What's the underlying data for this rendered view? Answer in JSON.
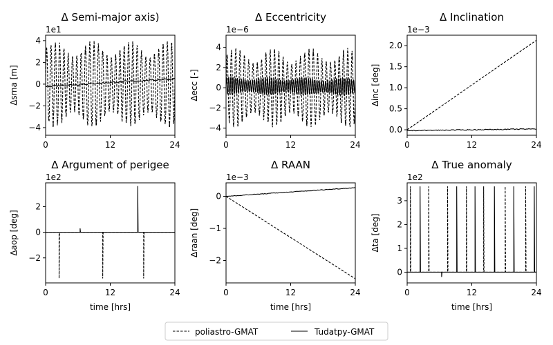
{
  "legend": {
    "items": [
      {
        "label": "poliastro-GMAT",
        "style": "dashed"
      },
      {
        "label": "Tudatpy-GMAT",
        "style": "solid"
      }
    ]
  },
  "chart_data": [
    {
      "type": "line",
      "title": "Δ Semi-major axis)",
      "ylabel": "Δsma [m]",
      "xlabel": "",
      "multiplier": "1e1",
      "xlim": [
        0,
        24
      ],
      "ylim": [
        -4.7,
        4.5
      ],
      "xticks": [
        0,
        12,
        24
      ],
      "yticks": [
        -4,
        -2,
        0,
        2,
        4
      ],
      "xtick_labels": [
        "0",
        "12",
        "24"
      ],
      "ytick_labels": [
        "−4",
        "−2",
        "0",
        "2",
        "4"
      ],
      "series": [
        {
          "style": "dashed",
          "pattern": "oscillation",
          "amplitude": 4.1,
          "period_hrs": 0.8,
          "trend": [
            0,
            0
          ]
        },
        {
          "style": "solid",
          "pattern": "line",
          "trend": [
            -0.2,
            0.5
          ],
          "noise": 0.08
        }
      ]
    },
    {
      "type": "line",
      "title": "Δ Eccentricity",
      "ylabel": "Δecc [-]",
      "xlabel": "",
      "multiplier": "1e−6",
      "xlim": [
        0,
        24
      ],
      "ylim": [
        -4.7,
        5.2
      ],
      "xticks": [
        0,
        12,
        24
      ],
      "yticks": [
        -4,
        -2,
        0,
        2,
        4
      ],
      "xtick_labels": [
        "0",
        "12",
        "24"
      ],
      "ytick_labels": [
        "−4",
        "−2",
        "0",
        "2",
        "4"
      ],
      "series": [
        {
          "style": "dashed",
          "pattern": "oscillation",
          "amplitude": 4.0,
          "period_hrs": 0.8,
          "trend": [
            0,
            0
          ]
        },
        {
          "style": "solid",
          "pattern": "oscillation",
          "amplitude": 0.9,
          "period_hrs": 0.4,
          "trend": [
            0.2,
            0.1
          ]
        }
      ]
    },
    {
      "type": "line",
      "title": "Δ Inclination",
      "ylabel": "Δinc [deg]",
      "xlabel": "",
      "multiplier": "1e−3",
      "xlim": [
        0,
        24
      ],
      "ylim": [
        -0.13,
        2.25
      ],
      "xticks": [
        0,
        12,
        24
      ],
      "yticks": [
        0.0,
        0.5,
        1.0,
        1.5,
        2.0
      ],
      "xtick_labels": [
        "0",
        "12",
        "24"
      ],
      "ytick_labels": [
        "0.0",
        "0.5",
        "1.0",
        "1.5",
        "2.0"
      ],
      "series": [
        {
          "style": "dashed",
          "pattern": "line",
          "trend": [
            0.0,
            2.13
          ],
          "noise": 0
        },
        {
          "style": "solid",
          "pattern": "line",
          "trend": [
            -0.02,
            0.02
          ],
          "noise": 0.01
        }
      ]
    },
    {
      "type": "line",
      "title": "Δ Argument of perigee",
      "ylabel": "Δaop [deg]",
      "xlabel": "time [hrs]",
      "multiplier": "1e2",
      "xlim": [
        0,
        24
      ],
      "ylim": [
        -3.95,
        3.85
      ],
      "xticks": [
        0,
        12,
        24
      ],
      "yticks": [
        -2,
        0,
        2
      ],
      "xtick_labels": [
        "0",
        "12",
        "24"
      ],
      "ytick_labels": [
        "−2",
        "0",
        "2"
      ],
      "series": [
        {
          "style": "dashed",
          "pattern": "spikes",
          "baseline": 0,
          "spikes": [
            [
              2.5,
              -3.6
            ],
            [
              10.6,
              -3.6
            ],
            [
              18.2,
              -3.6
            ]
          ]
        },
        {
          "style": "solid",
          "pattern": "spikes",
          "baseline": 0,
          "spikes": [
            [
              17.1,
              3.6
            ],
            [
              6.4,
              0.3
            ]
          ]
        }
      ]
    },
    {
      "type": "line",
      "title": "Δ RAAN",
      "ylabel": "Δraan [deg]",
      "xlabel": "time [hrs]",
      "multiplier": "1e−3",
      "xlim": [
        0,
        24
      ],
      "ylim": [
        -2.7,
        0.42
      ],
      "xticks": [
        0,
        12,
        24
      ],
      "yticks": [
        -2,
        -1,
        0
      ],
      "xtick_labels": [
        "0",
        "12",
        "24"
      ],
      "ytick_labels": [
        "−2",
        "−1",
        "0"
      ],
      "series": [
        {
          "style": "dashed",
          "pattern": "line",
          "trend": [
            0.0,
            -2.57
          ],
          "noise": 0
        },
        {
          "style": "solid",
          "pattern": "line",
          "trend": [
            0.0,
            0.27
          ],
          "noise": 0.01
        }
      ]
    },
    {
      "type": "line",
      "title": "Δ True anomaly",
      "ylabel": "Δta [deg]",
      "xlabel": "time [hrs]",
      "multiplier": "1e2",
      "xlim": [
        0,
        24
      ],
      "ylim": [
        -0.45,
        3.75
      ],
      "xticks": [
        0,
        12,
        24
      ],
      "yticks": [
        0,
        1,
        2,
        3
      ],
      "xtick_labels": [
        "0",
        "12",
        "24"
      ],
      "ytick_labels": [
        "0",
        "1",
        "2",
        "3"
      ],
      "series": [
        {
          "style": "dashed",
          "pattern": "spikes",
          "baseline": 0,
          "spikes": [
            [
              0.6,
              3.6
            ],
            [
              4.0,
              3.6
            ],
            [
              7.5,
              3.6
            ],
            [
              11.0,
              3.6
            ],
            [
              14.2,
              3.6
            ],
            [
              18.2,
              3.6
            ],
            [
              22.0,
              3.6
            ]
          ]
        },
        {
          "style": "solid",
          "pattern": "spikes",
          "baseline": 0,
          "spikes": [
            [
              2.4,
              3.6
            ],
            [
              6.4,
              -0.2
            ],
            [
              9.2,
              3.6
            ],
            [
              12.6,
              3.6
            ],
            [
              16.2,
              3.6
            ],
            [
              19.8,
              3.6
            ],
            [
              23.6,
              3.6
            ]
          ]
        }
      ]
    }
  ]
}
